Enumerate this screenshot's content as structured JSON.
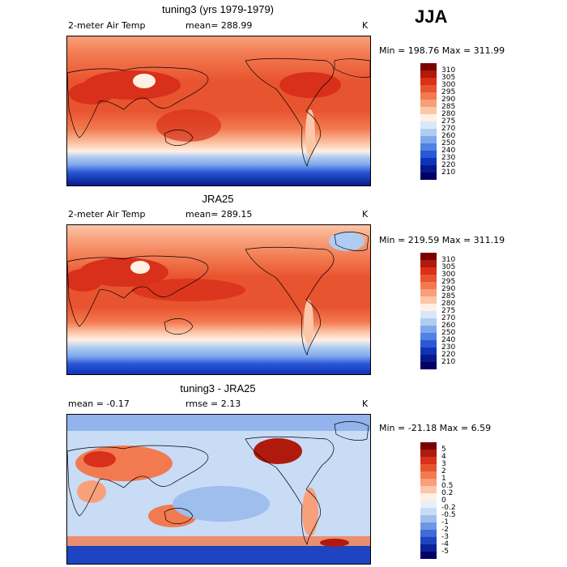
{
  "season": "JJA",
  "panels": [
    {
      "title": "tuning3 (yrs 1979-1979)",
      "left_label": "2-meter Air Temp",
      "center_label": "mean= 288.99",
      "unit": "K",
      "minmax": "Min = 198.76 Max = 311.99",
      "colorbar": {
        "labels": [
          "310",
          "305",
          "300",
          "295",
          "290",
          "285",
          "280",
          "275",
          "270",
          "260",
          "250",
          "240",
          "230",
          "220",
          "210"
        ],
        "colors": [
          "#7a0000",
          "#b01a0c",
          "#d8301a",
          "#e8542f",
          "#f27a50",
          "#f8a07a",
          "#fcc6a8",
          "#fff0e4",
          "#d8e8f8",
          "#b0ccf2",
          "#7fa8ec",
          "#4f82e2",
          "#2a58d6",
          "#1232b8",
          "#061a8c",
          "#000066"
        ]
      }
    },
    {
      "title": "JRA25",
      "left_label": "2-meter Air Temp",
      "center_label": "mean= 289.15",
      "unit": "K",
      "minmax": "Min = 219.59 Max = 311.19",
      "colorbar": {
        "labels": [
          "310",
          "305",
          "300",
          "295",
          "290",
          "285",
          "280",
          "275",
          "270",
          "260",
          "250",
          "240",
          "230",
          "220",
          "210"
        ],
        "colors": [
          "#7a0000",
          "#b01a0c",
          "#d8301a",
          "#e8542f",
          "#f27a50",
          "#f8a07a",
          "#fcc6a8",
          "#fff0e4",
          "#d8e8f8",
          "#b0ccf2",
          "#7fa8ec",
          "#4f82e2",
          "#2a58d6",
          "#1232b8",
          "#061a8c",
          "#000066"
        ]
      }
    },
    {
      "title": "tuning3 - JRA25",
      "left_label": "mean =   -0.17",
      "center_label": "rmse =    2.13",
      "unit": "K",
      "minmax": "Min = -21.18 Max =    6.59",
      "colorbar": {
        "labels": [
          "5",
          "4",
          "3",
          "2",
          "1",
          "0.5",
          "0.2",
          "0",
          "-0.2",
          "-0.5",
          "-1",
          "-2",
          "-3",
          "-4",
          "-5"
        ],
        "colors": [
          "#7a0000",
          "#b01a0c",
          "#d8301a",
          "#e8542f",
          "#f27a50",
          "#f8a07a",
          "#fcc6a8",
          "#fff0e4",
          "#e8f0fa",
          "#c8dcf6",
          "#9ebeee",
          "#6e98e4",
          "#3f6cd8",
          "#1f44c2",
          "#0a2396",
          "#000066"
        ]
      }
    }
  ]
}
